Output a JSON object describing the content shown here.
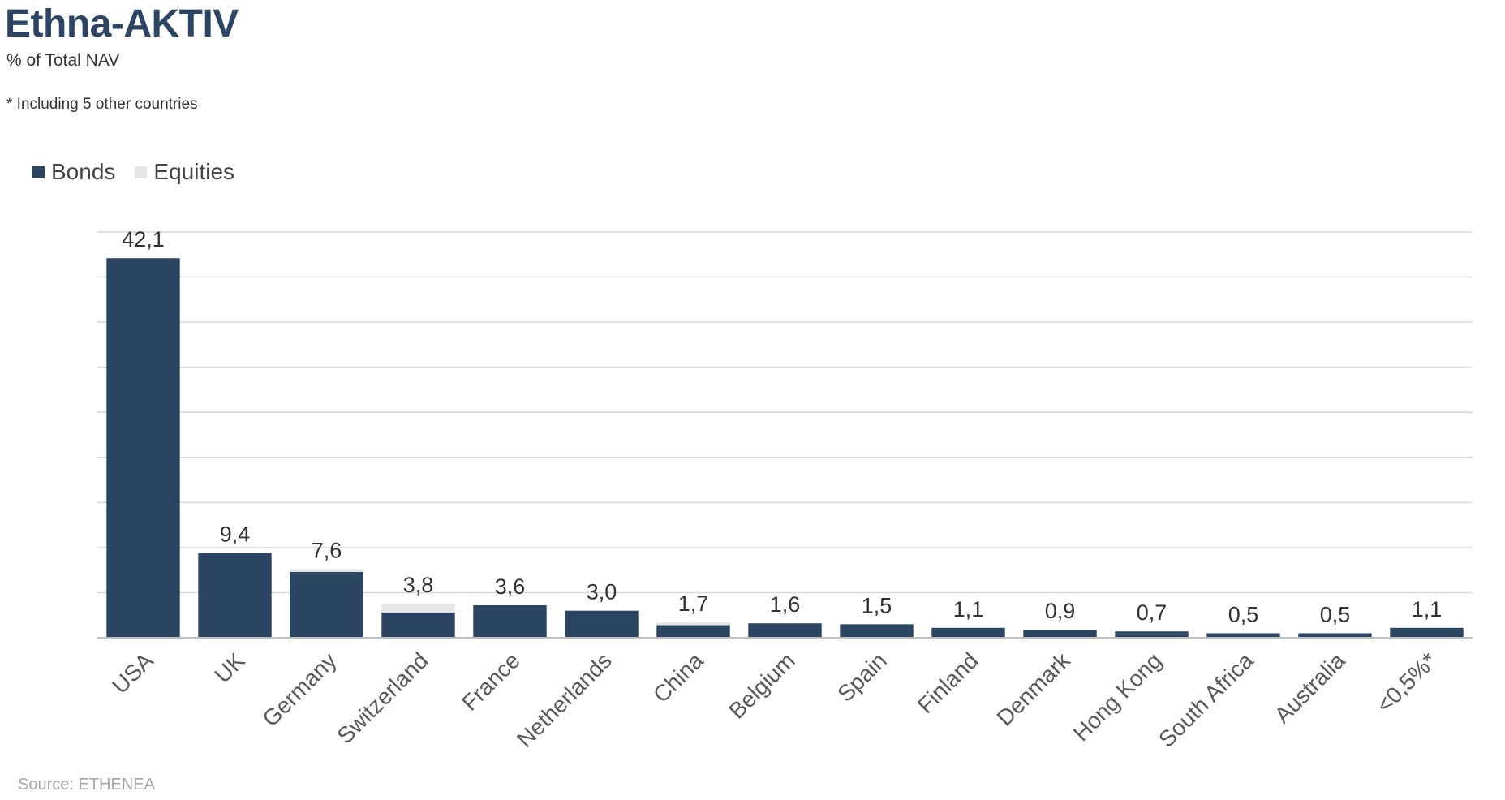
{
  "header": {
    "title": "Ethna-AKTIV",
    "subtitle": "% of Total NAV",
    "footnote": "* Including 5 other countries"
  },
  "legend": {
    "items": [
      {
        "label": "Bonds",
        "color": "#2c4562"
      },
      {
        "label": "Equities",
        "color": "#e6e6e6"
      }
    ]
  },
  "source": "Source: ETHENEA",
  "chart_data": {
    "type": "bar",
    "stacked": true,
    "categories": [
      "USA",
      "UK",
      "Germany",
      "Switzerland",
      "France",
      "Netherlands",
      "China",
      "Belgium",
      "Spain",
      "Finland",
      "Denmark",
      "Hong Kong",
      "South Africa",
      "Australia",
      "<0,5%*"
    ],
    "series": [
      {
        "name": "Bonds",
        "color": "#2c4562",
        "values": [
          42.1,
          9.4,
          7.3,
          2.8,
          3.6,
          3.0,
          1.4,
          1.6,
          1.5,
          1.1,
          0.9,
          0.7,
          0.5,
          0.5,
          1.1
        ]
      },
      {
        "name": "Equities",
        "color": "#e6e6e6",
        "values": [
          0.0,
          0.0,
          0.3,
          1.0,
          0.0,
          0.0,
          0.3,
          0.0,
          0.0,
          0.0,
          0.0,
          0.0,
          0.0,
          0.0,
          0.0
        ]
      }
    ],
    "totals": [
      "42,1",
      "9,4",
      "7,6",
      "3,8",
      "3,6",
      "3,0",
      "1,7",
      "1,6",
      "1,5",
      "1,1",
      "0,9",
      "0,7",
      "0,5",
      "0,5",
      "1,1"
    ],
    "ylim": [
      0,
      45
    ],
    "grid": true,
    "legend_position": "top-left"
  }
}
